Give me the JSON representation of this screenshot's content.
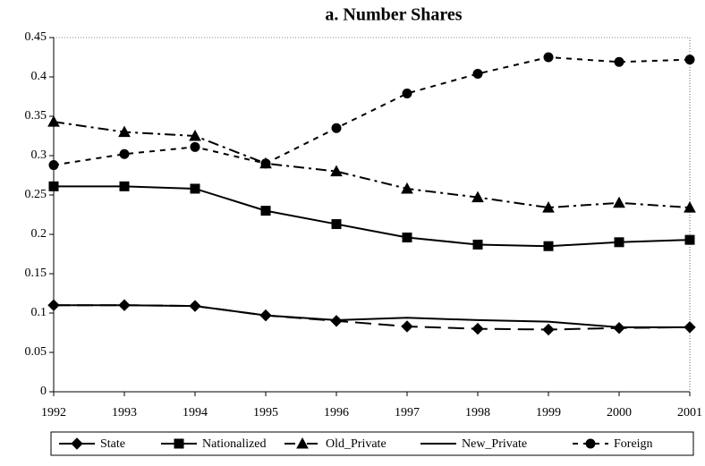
{
  "chart_data": {
    "type": "line",
    "title": "a. Number Shares",
    "categories": [
      "1992",
      "1993",
      "1994",
      "1995",
      "1996",
      "1997",
      "1998",
      "1999",
      "2000",
      "2001"
    ],
    "ylim": [
      0,
      0.45
    ],
    "yticks": [
      0,
      0.05,
      0.1,
      0.15,
      0.2,
      0.25,
      0.3,
      0.35,
      0.4,
      0.45
    ],
    "grid": false,
    "legend": "bottom",
    "series": [
      {
        "name": "State",
        "color": "#000000",
        "marker": "diamond",
        "dash": "18 8",
        "values": [
          0.11,
          0.11,
          0.109,
          0.097,
          0.09,
          0.083,
          0.08,
          0.079,
          0.081,
          0.082
        ]
      },
      {
        "name": "Nationalized",
        "color": "#000000",
        "marker": "square",
        "dash": "none",
        "values": [
          0.261,
          0.261,
          0.258,
          0.23,
          0.213,
          0.196,
          0.187,
          0.185,
          0.19,
          0.193
        ]
      },
      {
        "name": "Old_Private",
        "color": "#000000",
        "marker": "triangle",
        "dash": "12 5 3 5",
        "values": [
          0.343,
          0.33,
          0.325,
          0.29,
          0.28,
          0.258,
          0.247,
          0.234,
          0.24,
          0.234
        ]
      },
      {
        "name": "New_Private",
        "color": "#000000",
        "marker": "none",
        "dash": "none",
        "values": [
          0.11,
          0.11,
          0.109,
          0.097,
          0.091,
          0.094,
          0.091,
          0.089,
          0.082,
          0.082
        ]
      },
      {
        "name": "Foreign",
        "color": "#000000",
        "marker": "circle",
        "dash": "6 6",
        "values": [
          0.288,
          0.302,
          0.311,
          0.29,
          0.335,
          0.379,
          0.404,
          0.425,
          0.419,
          0.422
        ]
      }
    ]
  }
}
